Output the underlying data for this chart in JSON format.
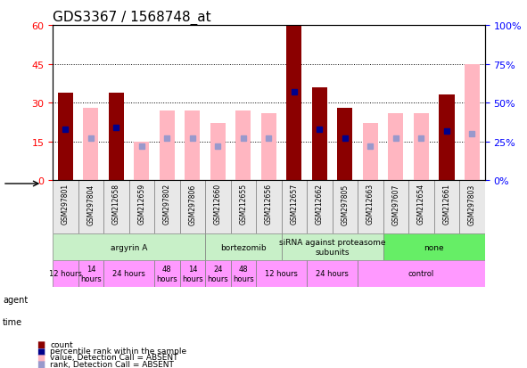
{
  "title": "GDS3367 / 1568748_at",
  "samples": [
    "GSM297801",
    "GSM297804",
    "GSM212658",
    "GSM212659",
    "GSM297802",
    "GSM297806",
    "GSM212660",
    "GSM212655",
    "GSM212656",
    "GSM212657",
    "GSM212662",
    "GSM297805",
    "GSM212663",
    "GSM297607",
    "GSM212654",
    "GSM212661",
    "GSM297803"
  ],
  "count_values": [
    34,
    0,
    34,
    0,
    0,
    0,
    0,
    0,
    0,
    60,
    36,
    28,
    0,
    0,
    0,
    33,
    0
  ],
  "absent_values": [
    0,
    28,
    0,
    15,
    27,
    27,
    22,
    27,
    26,
    0,
    0,
    0,
    22,
    26,
    26,
    0,
    45
  ],
  "percentile_present": [
    33,
    -1,
    34,
    -1,
    -1,
    -1,
    -1,
    -1,
    -1,
    57,
    33,
    27,
    -1,
    -1,
    -1,
    32,
    -1
  ],
  "percentile_absent": [
    -1,
    27,
    -1,
    22,
    27,
    27,
    22,
    27,
    27,
    -1,
    -1,
    -1,
    22,
    27,
    27,
    -1,
    30
  ],
  "count_color": "#8B0000",
  "absent_color": "#FFB6C1",
  "rank_present_color": "#00008B",
  "rank_absent_color": "#9999CC",
  "ylim_left": [
    0,
    60
  ],
  "ylim_right": [
    0,
    100
  ],
  "yticks_left": [
    0,
    15,
    30,
    45,
    60
  ],
  "yticks_right": [
    0,
    25,
    50,
    75,
    100
  ],
  "ytick_labels_right": [
    "0%",
    "25%",
    "50%",
    "75%",
    "100%"
  ],
  "agents": [
    {
      "label": "argyrin A",
      "start": 0,
      "end": 6,
      "color": "#90EE90"
    },
    {
      "label": "bortezomib",
      "start": 6,
      "end": 9,
      "color": "#90EE90"
    },
    {
      "label": "siRNA against proteasome\nsubunits",
      "start": 9,
      "end": 13,
      "color": "#90EE90"
    },
    {
      "label": "none",
      "start": 13,
      "end": 17,
      "color": "#00CC00"
    }
  ],
  "times": [
    {
      "label": "12 hours",
      "start": 0,
      "end": 1,
      "color": "#FF99FF"
    },
    {
      "label": "14\nhours",
      "start": 1,
      "end": 2,
      "color": "#FF99FF"
    },
    {
      "label": "24 hours",
      "start": 2,
      "end": 4,
      "color": "#FF99FF"
    },
    {
      "label": "48\nhours",
      "start": 4,
      "end": 5,
      "color": "#FF99FF"
    },
    {
      "label": "14\nhours",
      "start": 5,
      "end": 6,
      "color": "#FF99FF"
    },
    {
      "label": "24\nhours",
      "start": 6,
      "end": 7,
      "color": "#FF99FF"
    },
    {
      "label": "48\nhours",
      "start": 7,
      "end": 8,
      "color": "#FF99FF"
    },
    {
      "label": "12 hours",
      "start": 8,
      "end": 10,
      "color": "#FF99FF"
    },
    {
      "label": "24 hours",
      "start": 10,
      "end": 12,
      "color": "#FF99FF"
    },
    {
      "label": "control",
      "start": 12,
      "end": 17,
      "color": "#FF99FF"
    }
  ],
  "legend": [
    {
      "label": "count",
      "color": "#8B0000",
      "marker": "s"
    },
    {
      "label": "percentile rank within the sample",
      "color": "#00008B",
      "marker": "s"
    },
    {
      "label": "value, Detection Call = ABSENT",
      "color": "#FFB6C1",
      "marker": "s"
    },
    {
      "label": "rank, Detection Call = ABSENT",
      "color": "#9999CC",
      "marker": "s"
    }
  ]
}
